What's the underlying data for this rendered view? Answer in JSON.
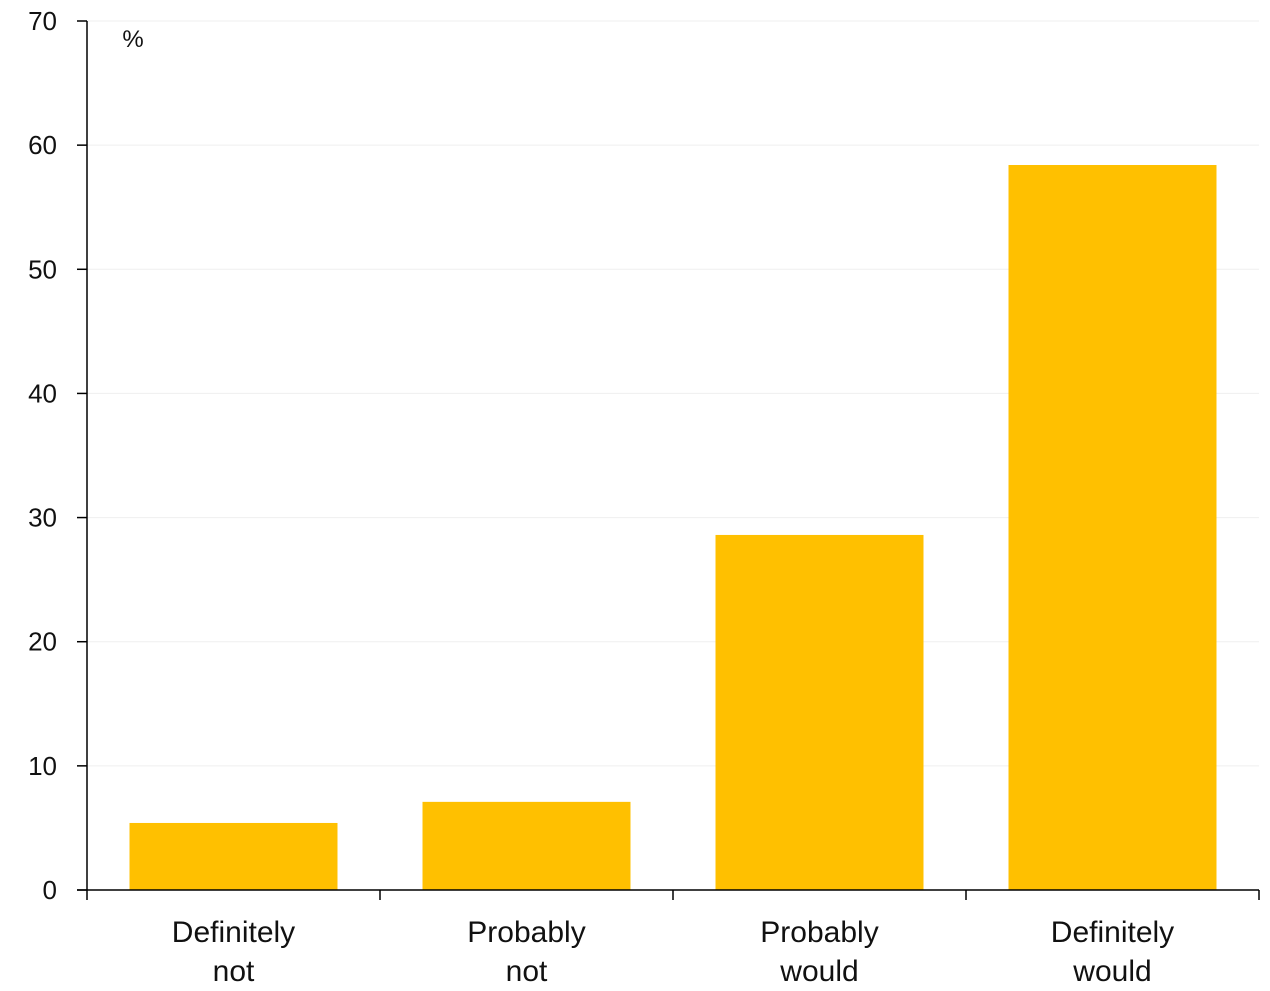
{
  "chart_data": {
    "type": "bar",
    "unit_label": "%",
    "categories": [
      [
        "Definitely",
        "not"
      ],
      [
        "Probably",
        "not"
      ],
      [
        "Probably",
        "would"
      ],
      [
        "Definitely",
        "would"
      ]
    ],
    "values": [
      5.4,
      7.1,
      28.6,
      58.4
    ],
    "ylim": [
      0,
      70
    ],
    "yticks": [
      0,
      10,
      20,
      30,
      40,
      50,
      60,
      70
    ],
    "grid": true,
    "colors": {
      "bar": "#FFC000",
      "axis": "#000000",
      "grid": "#EFEFEF"
    }
  }
}
